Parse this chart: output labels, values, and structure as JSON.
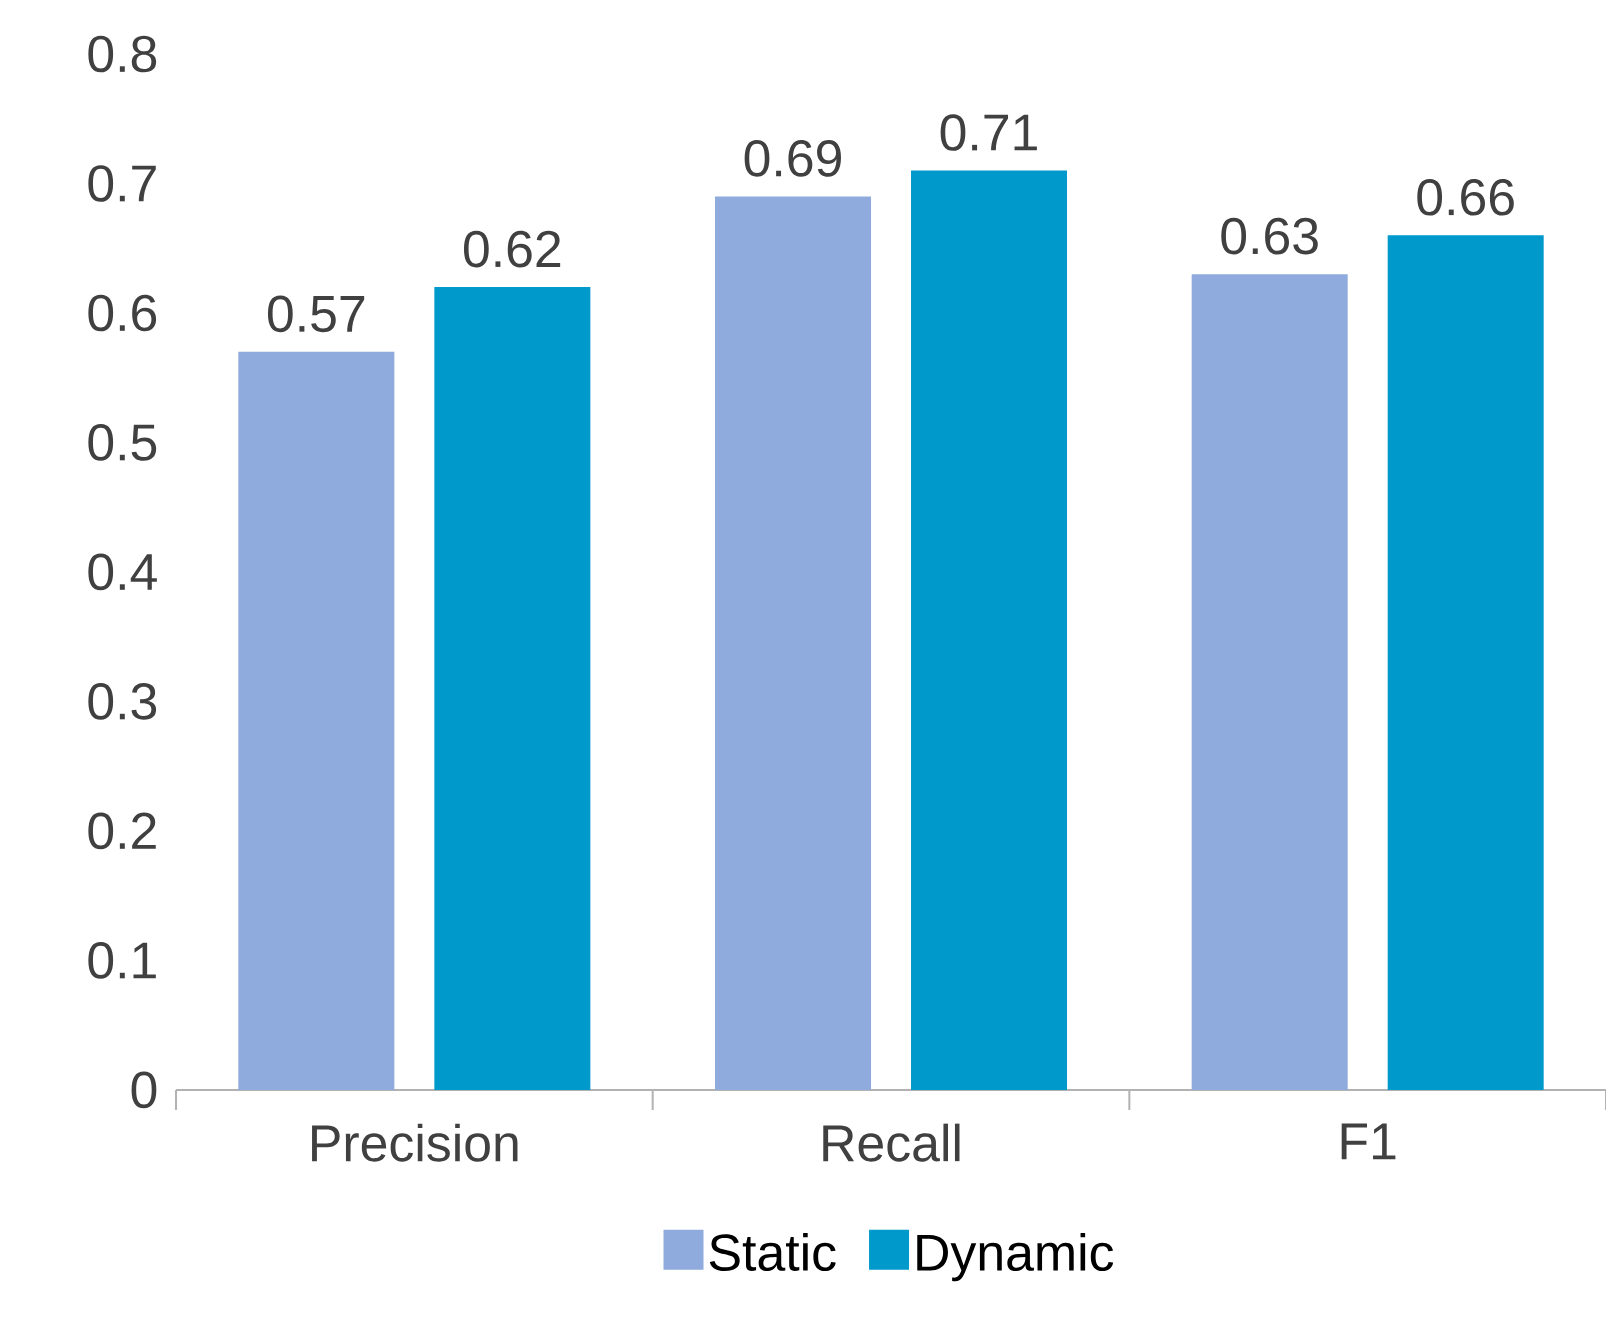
{
  "chart_data": {
    "type": "bar",
    "categories": [
      "Precision",
      "Recall",
      "F1"
    ],
    "series": [
      {
        "name": "Static",
        "color": "#8faadc",
        "values": [
          0.57,
          0.69,
          0.63
        ]
      },
      {
        "name": "Dynamic",
        "color": "#0099cc",
        "values": [
          0.62,
          0.71,
          0.66
        ]
      }
    ],
    "ylim": [
      0,
      0.8
    ],
    "yticks": [
      0,
      0.1,
      0.2,
      0.3,
      0.4,
      0.5,
      0.6,
      0.7,
      0.8
    ],
    "data_labels": true,
    "grid": false,
    "legend": "bottom"
  }
}
